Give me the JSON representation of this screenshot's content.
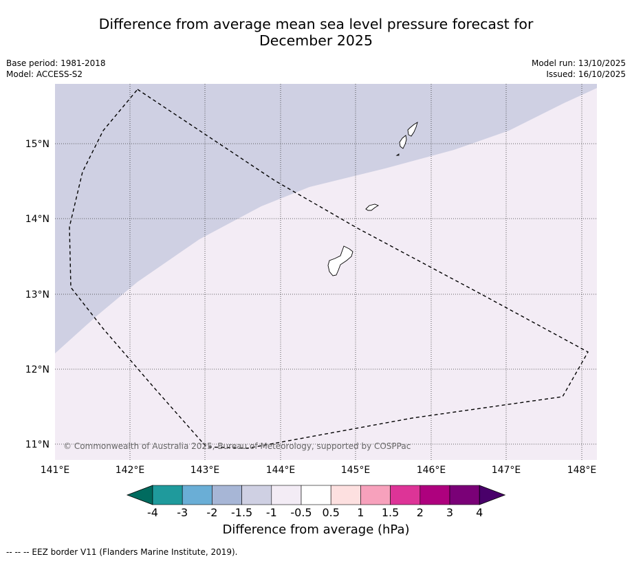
{
  "title": {
    "line1": "Difference from average mean sea level pressure forecast for",
    "line2": "December 2025"
  },
  "meta": {
    "base_period": "Base period: 1981-2018",
    "model": "Model: ACCESS-S2",
    "model_run": "Model run: 13/10/2025",
    "issued": "Issued: 16/10/2025"
  },
  "map": {
    "lat_labels": [
      "15°N",
      "14°N",
      "13°N",
      "12°N",
      "11°N"
    ],
    "lon_labels": [
      "141°E",
      "142°E",
      "143°E",
      "144°E",
      "145°E",
      "146°E",
      "147°E",
      "148°E"
    ],
    "copyright": "© Commonwealth of Australia 2025, Bureau of Meteorology, supported by COSPPac",
    "region_low_color": "#cfd0e3",
    "region_near_color": "#f3ecf5"
  },
  "colorbar": {
    "ticks": [
      "-4",
      "-3",
      "-2",
      "-1.5",
      "-1",
      "-0.5",
      "0.5",
      "1",
      "1.5",
      "2",
      "3",
      "4"
    ],
    "colors": [
      "#006b5f",
      "#1f9a9c",
      "#6aaed6",
      "#a7b6d6",
      "#cfd0e3",
      "#f3ecf5",
      "#ffffff",
      "#fde0e0",
      "#f7a1bc",
      "#dd3497",
      "#ae017e",
      "#7a0177",
      "#49006a"
    ],
    "title": "Difference from average (hPa)"
  },
  "footnote": "-- -- -- EEZ border V11 (Flanders Marine Institute, 2019)."
}
